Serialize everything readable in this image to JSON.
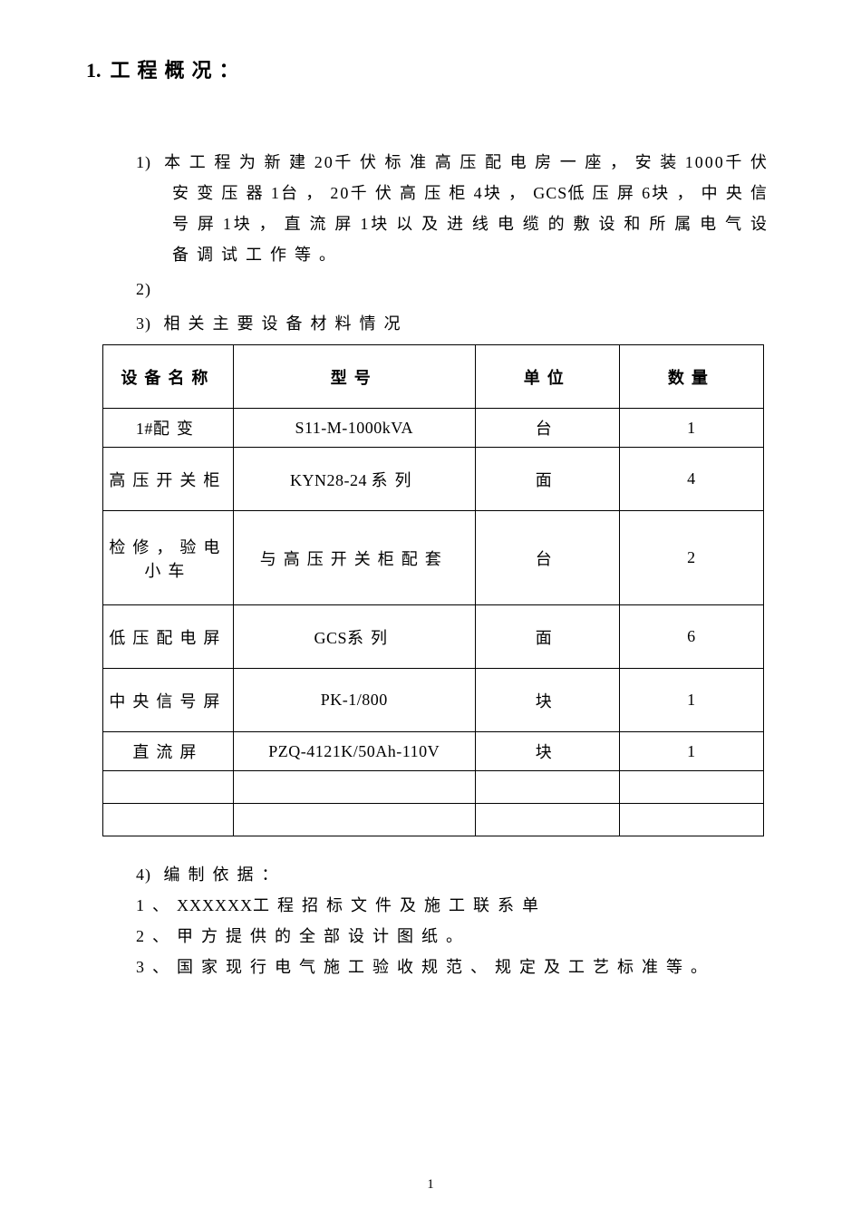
{
  "section": {
    "number": "1.",
    "title": "工程概况："
  },
  "items": {
    "i1_marker": "1)",
    "i1_text_a": "本工程为新建",
    "i1_num_a": "20",
    "i1_text_b": "千伏标准高压配电房一座，安装",
    "i1_num_b": "1000",
    "i1_text_c": "千伏安变压器",
    "i1_num_c": "1",
    "i1_text_d": "台，",
    "i1_num_d": "20",
    "i1_text_e": "千伏高压柜",
    "i1_num_e": "4",
    "i1_text_f": "块，",
    "i1_latin_f": "GCS",
    "i1_text_g": "低压屏",
    "i1_num_g": "6",
    "i1_text_h": "块，中央信号屏",
    "i1_num_h": "1",
    "i1_text_i": "块，直流屏",
    "i1_num_i": "1",
    "i1_text_j": "块以及进线电缆的敷设和所属电气设备调试工作等。",
    "i2_marker": "2)",
    "i3_marker": "3)",
    "i3_text": "相关主要设备材料情况",
    "i4_marker": "4)",
    "i4_text": "编制依据：",
    "b1_marker": "1、",
    "b1_latin": "XXXXXX",
    "b1_text": "工程招标文件及施工联系单",
    "b2_marker": "2、",
    "b2_text": "甲方提供的全部设计图纸。",
    "b3_marker": "3、",
    "b3_text": "国家现行电气施工验收规范、规定及工艺标准等。"
  },
  "table": {
    "headers": {
      "name": "设备名称",
      "model": "型号",
      "unit": "单位",
      "qty": "数量"
    },
    "rows": [
      {
        "name_pre": "1#",
        "name": "配变",
        "model": "S11-M-1000kVA",
        "model_type": "latin",
        "unit": "台",
        "qty": "1",
        "h": "row-h1"
      },
      {
        "name": "高压开关柜",
        "model_pre": "KYN28-24",
        "model_suf": "系列",
        "model_type": "mixed",
        "unit": "面",
        "qty": "4",
        "h": "row-h2"
      },
      {
        "name": "检修，验电小车",
        "model": "与高压开关柜配套",
        "model_type": "cn",
        "unit": "台",
        "qty": "2",
        "h": "row-h3"
      },
      {
        "name": "低压配电屏",
        "model_pre": "GCS",
        "model_suf": "系列",
        "model_type": "mixed",
        "unit": "面",
        "qty": "6",
        "h": "row-h2"
      },
      {
        "name": "中央信号屏",
        "model": "PK-1/800",
        "model_type": "latin",
        "unit": "块",
        "qty": "1",
        "h": "row-h2"
      },
      {
        "name": "直流屏",
        "model": "PZQ-4121K/50Ah-110V",
        "model_type": "latin",
        "unit": "块",
        "qty": "1",
        "h": "row-h1"
      }
    ]
  },
  "page_number": "1"
}
